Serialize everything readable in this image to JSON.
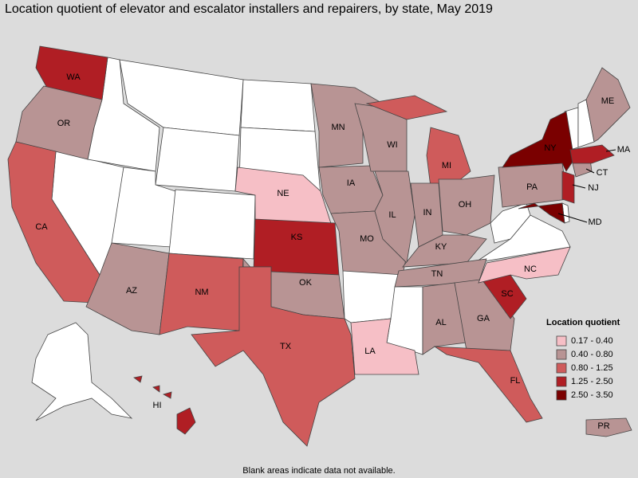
{
  "title": "Location quotient of elevator and escalator installers and repairers, by state, May 2019",
  "states": [
    {
      "label": "WA",
      "class": 3
    },
    {
      "label": "OR",
      "class": 1
    },
    {
      "label": "CA",
      "class": 2
    },
    {
      "label": "AZ",
      "class": 1
    },
    {
      "label": "NM",
      "class": 2
    },
    {
      "label": "NE",
      "class": 0
    },
    {
      "label": "KS",
      "class": 3
    },
    {
      "label": "OK",
      "class": 1
    },
    {
      "label": "TX",
      "class": 2
    },
    {
      "label": "MN",
      "class": 1
    },
    {
      "label": "IA",
      "class": 1
    },
    {
      "label": "MO",
      "class": 1
    },
    {
      "label": "LA",
      "class": 0
    },
    {
      "label": "WI",
      "class": 1
    },
    {
      "label": "IL",
      "class": 1
    },
    {
      "label": "MI",
      "class": 2
    },
    {
      "label": "IN",
      "class": 1
    },
    {
      "label": "OH",
      "class": 1
    },
    {
      "label": "KY",
      "class": 1
    },
    {
      "label": "TN",
      "class": 1
    },
    {
      "label": "AL",
      "class": 1
    },
    {
      "label": "GA",
      "class": 1
    },
    {
      "label": "FL",
      "class": 2
    },
    {
      "label": "SC",
      "class": 3
    },
    {
      "label": "NC",
      "class": 0
    },
    {
      "label": "PA",
      "class": 1
    },
    {
      "label": "NY",
      "class": 4
    },
    {
      "label": "NJ",
      "class": 3
    },
    {
      "label": "MD",
      "class": 4
    },
    {
      "label": "CT",
      "class": 1
    },
    {
      "label": "MA",
      "class": 3
    },
    {
      "label": "ME",
      "class": 1
    },
    {
      "label": "HI",
      "class": 3
    },
    {
      "label": "PR",
      "class": 1
    }
  ],
  "legend": {
    "title": "Location quotient",
    "items": [
      {
        "label": "0.17 - 0.40",
        "color": "#f6bfc6"
      },
      {
        "label": "0.40 - 0.80",
        "color": "#b89494"
      },
      {
        "label": "0.80 - 1.25",
        "color": "#cf5b5b"
      },
      {
        "label": "1.25 - 2.50",
        "color": "#b01e24"
      },
      {
        "label": "2.50 - 3.50",
        "color": "#7a0000"
      }
    ]
  },
  "note": "Blank areas indicate data not available."
}
